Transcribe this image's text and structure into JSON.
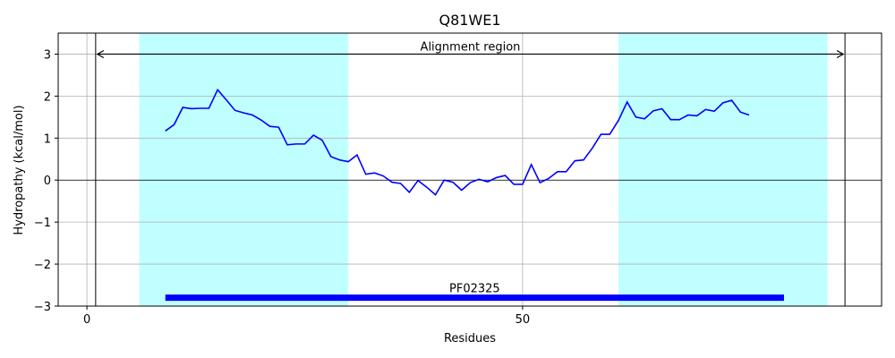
{
  "chart_data": {
    "type": "line",
    "title": "Q81WE1",
    "xlabel": "Residues",
    "ylabel": "Hydropathy (kcal/mol)",
    "x": [
      9,
      10,
      11,
      12,
      13,
      14,
      15,
      16,
      17,
      18,
      19,
      20,
      21,
      22,
      23,
      24,
      25,
      26,
      27,
      28,
      29,
      30,
      31,
      32,
      33,
      34,
      35,
      36,
      37,
      38,
      39,
      40,
      41,
      42,
      43,
      44,
      45,
      46,
      47,
      48,
      49,
      50,
      51,
      52,
      53,
      54,
      55,
      56,
      57,
      58,
      59,
      60,
      61,
      62,
      63,
      64,
      65,
      66,
      67,
      68,
      69,
      70,
      71,
      72,
      73,
      74,
      75,
      76
    ],
    "values": [
      1.17,
      1.32,
      1.73,
      1.7,
      1.71,
      1.71,
      2.15,
      1.91,
      1.66,
      1.6,
      1.55,
      1.43,
      1.28,
      1.26,
      0.84,
      0.86,
      0.86,
      1.07,
      0.95,
      0.56,
      0.48,
      0.44,
      0.6,
      0.14,
      0.17,
      0.1,
      -0.05,
      -0.08,
      -0.29,
      -0.01,
      -0.17,
      -0.35,
      0.0,
      -0.05,
      -0.24,
      -0.06,
      0.02,
      -0.04,
      0.06,
      0.11,
      -0.1,
      -0.1,
      0.37,
      -0.06,
      0.04,
      0.2,
      0.2,
      0.46,
      0.48,
      0.76,
      1.09,
      1.09,
      1.42,
      1.86,
      1.5,
      1.46,
      1.65,
      1.7,
      1.44,
      1.44,
      1.55,
      1.53,
      1.68,
      1.64,
      1.84,
      1.9,
      1.62,
      1.55
    ],
    "color": "#0000ff",
    "xlim": [
      -3.3,
      91.2
    ],
    "ylim": [
      -3,
      3.5
    ],
    "xticks": [
      0,
      50
    ],
    "yticks": [
      {
        "value": -3,
        "label": "−3"
      },
      {
        "value": -2,
        "label": "−2"
      },
      {
        "value": -1,
        "label": "−1"
      },
      0,
      1,
      2,
      3
    ],
    "grid": true,
    "zero_line": true,
    "shaded_regions": [
      {
        "start": 6,
        "end": 30
      },
      {
        "start": 61,
        "end": 85
      }
    ],
    "shade_color": "#c0ffff",
    "alignment_region": {
      "label": "Alignment region",
      "start": 1,
      "end": 87,
      "y": 3
    },
    "domain": {
      "label": "PF02325",
      "start": 9,
      "end": 80,
      "y": -2.8,
      "color": "#0000ff"
    }
  }
}
